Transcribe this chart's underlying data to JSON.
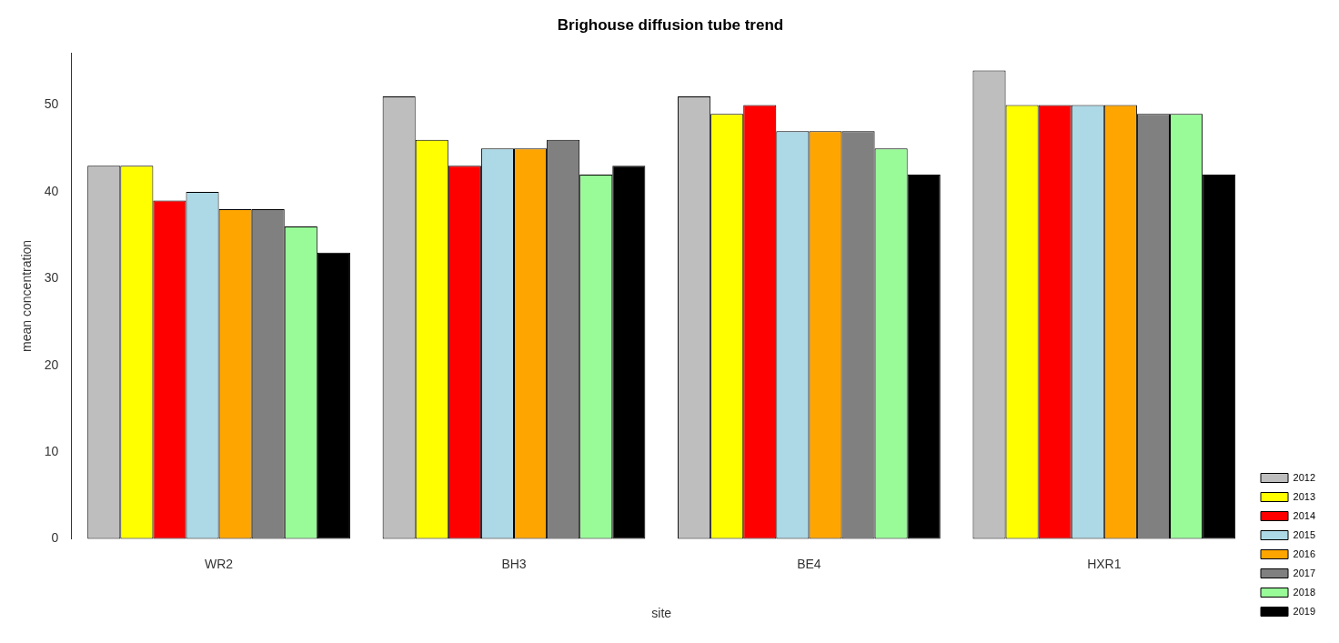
{
  "chart_data": {
    "type": "bar",
    "title": "Brighouse diffusion tube trend",
    "xlabel": "site",
    "ylabel": "mean concentration",
    "categories": [
      "WR2",
      "BH3",
      "BE4",
      "HXR1"
    ],
    "series": [
      {
        "name": "2012",
        "color": "#bebebe",
        "values": [
          43,
          51,
          51,
          54
        ]
      },
      {
        "name": "2013",
        "color": "#ffff00",
        "values": [
          43,
          46,
          49,
          50
        ]
      },
      {
        "name": "2014",
        "color": "#ff0000",
        "values": [
          39,
          43,
          50,
          50
        ]
      },
      {
        "name": "2015",
        "color": "#add8e6",
        "values": [
          40,
          45,
          47,
          50
        ]
      },
      {
        "name": "2016",
        "color": "#ffa500",
        "values": [
          38,
          45,
          47,
          50
        ]
      },
      {
        "name": "2017",
        "color": "#808080",
        "values": [
          38,
          46,
          47,
          49
        ]
      },
      {
        "name": "2018",
        "color": "#98fb98",
        "values": [
          36,
          42,
          45,
          49
        ]
      },
      {
        "name": "2019",
        "color": "#000000",
        "values": [
          33,
          43,
          42,
          42
        ]
      }
    ],
    "ylim": [
      0,
      56
    ],
    "yticks": [
      0,
      10,
      20,
      30,
      40,
      50
    ],
    "grid": false,
    "legend": "bottom right"
  }
}
